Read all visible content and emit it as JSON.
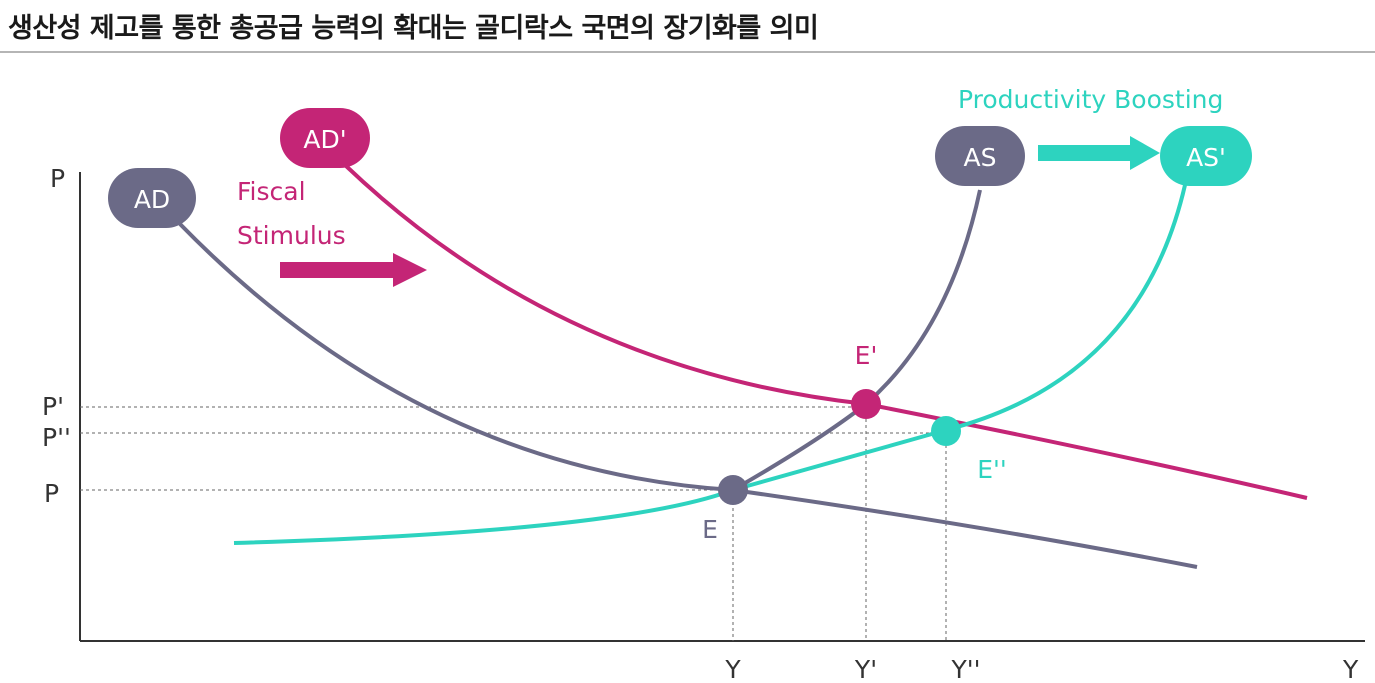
{
  "title": "생산성 제고를 통한 총공급 능력의 확대는 골디락스 국면의 장기화를 의미",
  "colors": {
    "ad": "#6b6a87",
    "ad_prime": "#c42576",
    "as_prime": "#2dd3bf",
    "axis": "#333333",
    "guide": "#666666"
  },
  "axes": {
    "y_label": "P",
    "x_label": "Y",
    "price_levels": [
      "P'",
      "P''",
      "P"
    ],
    "output_levels": [
      "Y",
      "Y'",
      "Y''"
    ]
  },
  "curves": {
    "ad": "AD",
    "ad_prime": "AD'",
    "as": "AS",
    "as_prime": "AS'"
  },
  "annotations": {
    "fiscal_line1": "Fiscal",
    "fiscal_line2": "Stimulus",
    "productivity": "Productivity Boosting"
  },
  "equilibria": {
    "e": "E",
    "e_prime": "E'",
    "e_double_prime": "E''"
  }
}
